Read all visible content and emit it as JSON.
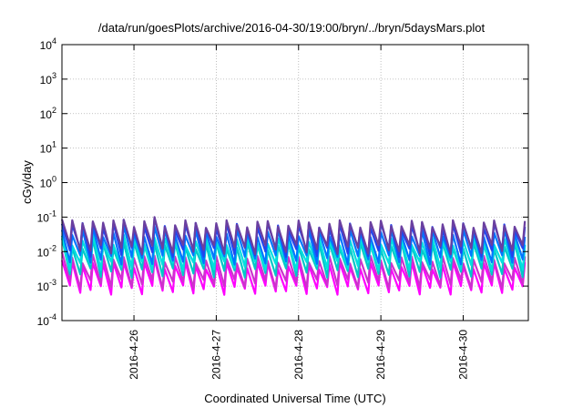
{
  "chart_data": {
    "type": "line",
    "title": "/data/run/goesPlots/archive/2016-04-30/19:00/bryn/../bryn/5daysMars.plot",
    "xlabel": "Coordinated Universal Time (UTC)",
    "ylabel": "cGy/day",
    "yscale": "log",
    "ylim": [
      0.0001,
      10000
    ],
    "xlim": [
      "2016-04-25 03:00",
      "2016-04-30 19:00"
    ],
    "y_ticks": [
      {
        "base": "10",
        "exp": "-4"
      },
      {
        "base": "10",
        "exp": "-3"
      },
      {
        "base": "10",
        "exp": "-2"
      },
      {
        "base": "10",
        "exp": "-1"
      },
      {
        "base": "10",
        "exp": "0"
      },
      {
        "base": "10",
        "exp": "1"
      },
      {
        "base": "10",
        "exp": "2"
      },
      {
        "base": "10",
        "exp": "3"
      },
      {
        "base": "10",
        "exp": "4"
      }
    ],
    "x_ticks": [
      "2016-4-26",
      "2016-4-27",
      "2016-4-28",
      "2016-4-29",
      "2016-4-30"
    ],
    "grid": true,
    "legend": "none",
    "cycle_hours": 3,
    "series": [
      {
        "color": "#ff00ff",
        "values_high": 0.004,
        "values_low": 0.0008
      },
      {
        "color": "#cc33cc",
        "values_high": 0.006,
        "values_low": 0.0012
      },
      {
        "color": "#00c8c8",
        "values_high": 0.015,
        "values_low": 0.0025
      },
      {
        "color": "#00e0e0",
        "values_high": 0.02,
        "values_low": 0.004
      },
      {
        "color": "#0077ff",
        "values_high": 0.035,
        "values_low": 0.006
      },
      {
        "color": "#2244ee",
        "values_high": 0.055,
        "values_low": 0.01
      },
      {
        "color": "#6a3fa0",
        "values_high": 0.065,
        "values_low": 0.012
      }
    ]
  }
}
